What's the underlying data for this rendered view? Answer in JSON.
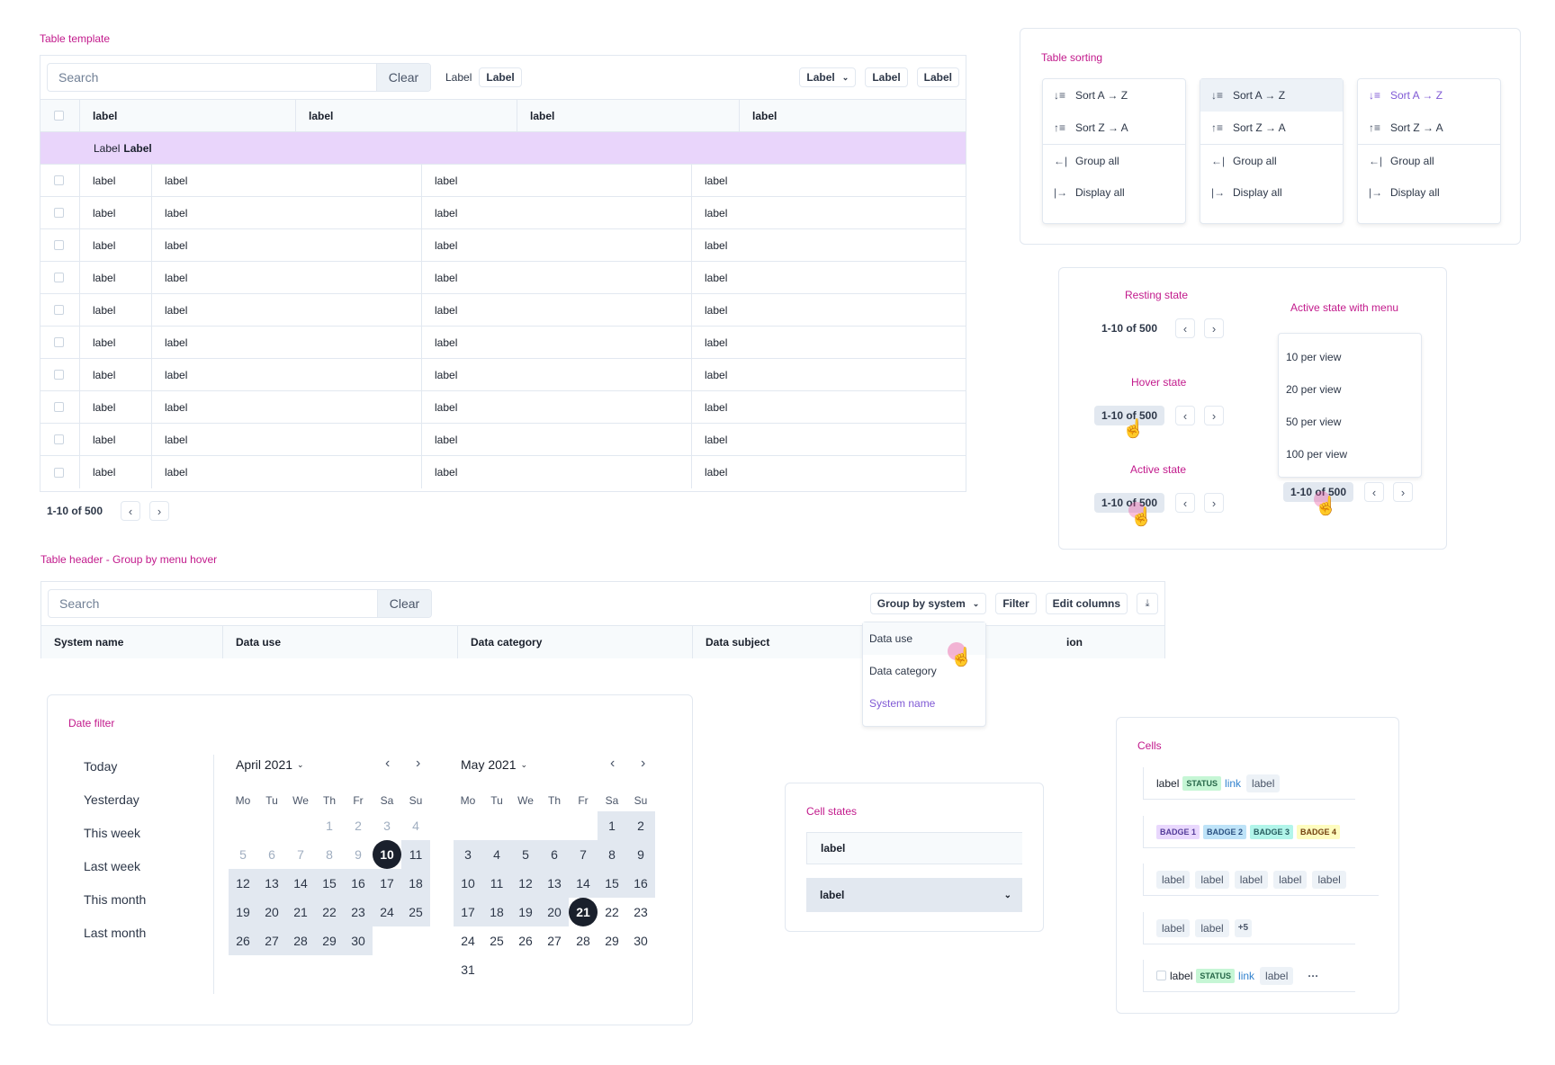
{
  "sections": {
    "table_template": "Table template",
    "table_sorting": "Table sorting",
    "group_by_hover": "Table header - Group by menu hover",
    "date_filter": "Date filter",
    "cell_states": "Cell states",
    "cells": "Cells"
  },
  "template": {
    "search_placeholder": "Search",
    "clear": "Clear",
    "filter_text": "Label",
    "filter_tag": "Label",
    "dropdown": "Label",
    "btn2": "Label",
    "btn3": "Label",
    "headers": [
      "label",
      "label",
      "label",
      "label"
    ],
    "group_label": "Label",
    "group_value": "Label",
    "rows": [
      [
        "label",
        "label",
        "label",
        "label"
      ],
      [
        "label",
        "label",
        "label",
        "label"
      ],
      [
        "label",
        "label",
        "label",
        "label"
      ],
      [
        "label",
        "label",
        "label",
        "label"
      ],
      [
        "label",
        "label",
        "label",
        "label"
      ],
      [
        "label",
        "label",
        "label",
        "label"
      ],
      [
        "label",
        "label",
        "label",
        "label"
      ],
      [
        "label",
        "label",
        "label",
        "label"
      ],
      [
        "label",
        "label",
        "label",
        "label"
      ],
      [
        "label",
        "label",
        "label",
        "label"
      ]
    ],
    "pagination": "1-10 of 500"
  },
  "sorting": {
    "items": [
      "Sort A → Z",
      "Sort Z → A",
      "Group all",
      "Display all"
    ],
    "icons": [
      "sort-asc-icon",
      "sort-desc-icon",
      "group-all-icon",
      "display-all-icon"
    ]
  },
  "pagination_states": {
    "resting": "Resting state",
    "hover": "Hover state",
    "active": "Active state",
    "active_menu": "Active state with menu",
    "label": "1-10 of 500",
    "menu": [
      "10 per view",
      "20 per view",
      "50 per view",
      "100 per view"
    ]
  },
  "group_header": {
    "search_placeholder": "Search",
    "clear": "Clear",
    "group_by": "Group by system",
    "filter": "Filter",
    "edit_columns": "Edit columns",
    "columns": [
      "System name",
      "Data use",
      "Data category",
      "Data subject",
      "ion"
    ],
    "menu": [
      "Data use",
      "Data category",
      "System name"
    ]
  },
  "date_filter": {
    "presets": [
      "Today",
      "Yesterday",
      "This week",
      "Last week",
      "This month",
      "Last month"
    ],
    "april": "April 2021",
    "may": "May 2021",
    "weekdays": [
      "Mo",
      "Tu",
      "We",
      "Th",
      "Fr",
      "Sa",
      "Su"
    ],
    "april_weeks": [
      [
        "",
        "",
        "",
        "1",
        "2",
        "3",
        "4"
      ],
      [
        "5",
        "6",
        "7",
        "8",
        "9",
        "10",
        "11"
      ],
      [
        "12",
        "13",
        "14",
        "15",
        "16",
        "17",
        "18"
      ],
      [
        "19",
        "20",
        "21",
        "22",
        "23",
        "24",
        "25"
      ],
      [
        "26",
        "27",
        "28",
        "29",
        "30",
        "",
        ""
      ]
    ],
    "may_weeks": [
      [
        "",
        "",
        "",
        "",
        "",
        "1",
        "2"
      ],
      [
        "3",
        "4",
        "5",
        "6",
        "7",
        "8",
        "9"
      ],
      [
        "10",
        "11",
        "12",
        "13",
        "14",
        "15",
        "16"
      ],
      [
        "17",
        "18",
        "19",
        "20",
        "21",
        "22",
        "23"
      ],
      [
        "24",
        "25",
        "26",
        "27",
        "28",
        "29",
        "30"
      ],
      [
        "31",
        "",
        "",
        "",
        "",
        "",
        ""
      ]
    ]
  },
  "cell_states": {
    "cell1": "label",
    "cell2": "label"
  },
  "cells": {
    "label": "label",
    "status": "STATUS",
    "link": "link",
    "tag": "label",
    "badges": [
      "BADGE 1",
      "BADGE 2",
      "BADGE 3",
      "BADGE 4"
    ],
    "tags5": [
      "label",
      "label",
      "label",
      "label",
      "label"
    ],
    "tags2": [
      "label",
      "label"
    ],
    "more": "+5",
    "ellipsis": "···"
  },
  "colors": {
    "accent": "#c21a8c",
    "group_row": "#e9d5fb",
    "purple_text": "#805ad5",
    "badge1": "#e9d8fd",
    "badge2": "#bee3f8",
    "badge3": "#b2f5ea",
    "badge4": "#fefcbf",
    "status": "#c6f6d5"
  }
}
